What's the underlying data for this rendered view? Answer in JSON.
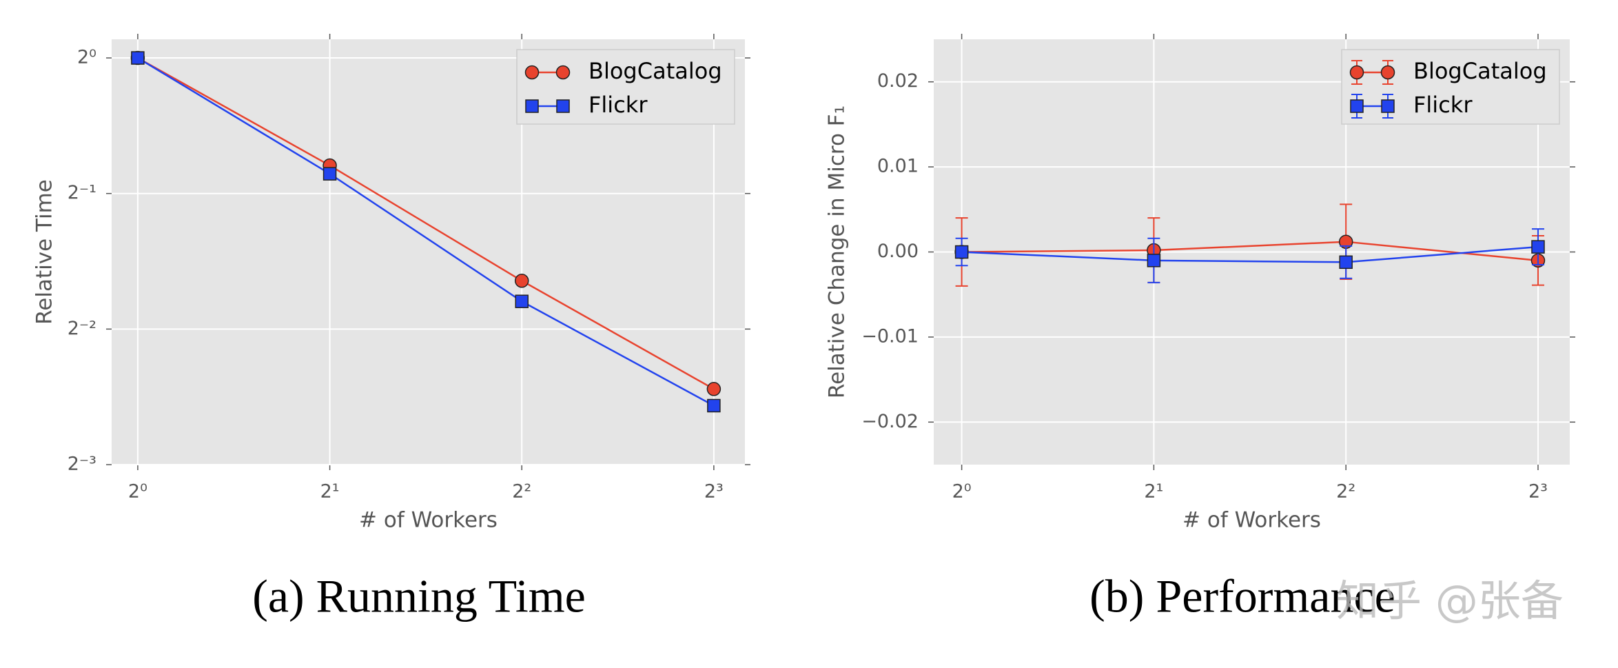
{
  "chart_data": [
    {
      "type": "line",
      "caption": "(a) Running Time",
      "xlabel": "# of Workers",
      "ylabel": "Relative Time",
      "xscale": "log",
      "yscale": "log",
      "x": [
        1,
        2,
        4,
        8
      ],
      "xlim": [
        0.91,
        8.95
      ],
      "xticks": [
        {
          "value": 1,
          "label": "2⁰"
        },
        {
          "value": 2,
          "label": "2¹"
        },
        {
          "value": 4,
          "label": "2²"
        },
        {
          "value": 8,
          "label": "2³"
        }
      ],
      "ylim": [
        0.125,
        1.1
      ],
      "yticks": [
        {
          "value": 1,
          "label": "2⁰"
        },
        {
          "value": 0.5,
          "label": "2⁻¹"
        },
        {
          "value": 0.25,
          "label": "2⁻²"
        },
        {
          "value": 0.125,
          "label": "2⁻³"
        }
      ],
      "grid": true,
      "legend": "upper right",
      "series": [
        {
          "name": "BlogCatalog",
          "color": "#e8432e",
          "marker": "o",
          "values": [
            1,
            0.577,
            0.32,
            0.184
          ]
        },
        {
          "name": "Flickr",
          "color": "#2243ee",
          "marker": "s",
          "values": [
            1,
            0.553,
            0.288,
            0.169
          ]
        }
      ]
    },
    {
      "type": "errorbar",
      "caption": "(b) Performance",
      "xlabel": "# of Workers",
      "ylabel": "Relative Change in Micro F₁",
      "xscale": "log",
      "x": [
        1,
        2,
        4,
        8
      ],
      "xlim": [
        0.904,
        8.97
      ],
      "xticks": [
        {
          "value": 1,
          "label": "2⁰"
        },
        {
          "value": 2,
          "label": "2¹"
        },
        {
          "value": 4,
          "label": "2²"
        },
        {
          "value": 8,
          "label": "2³"
        }
      ],
      "ylim": [
        -0.025,
        0.025
      ],
      "yticks": [
        {
          "value": 0.02,
          "label": "0.02"
        },
        {
          "value": 0.01,
          "label": "0.01"
        },
        {
          "value": 0,
          "label": "0.00"
        },
        {
          "value": -0.01,
          "label": "−0.01"
        },
        {
          "value": -0.02,
          "label": "−0.02"
        }
      ],
      "grid": true,
      "legend": "upper right",
      "series": [
        {
          "name": "BlogCatalog",
          "color": "#e8432e",
          "marker": "o",
          "values": [
            0,
            0.0002,
            0.0012,
            -0.001
          ],
          "errors": [
            0.004,
            0.0038,
            0.0044,
            0.0029
          ]
        },
        {
          "name": "Flickr",
          "color": "#2243ee",
          "marker": "s",
          "values": [
            0,
            -0.001,
            -0.0012,
            0.0006
          ],
          "errors": [
            0.0016,
            0.0026,
            0.0019,
            0.0021
          ]
        }
      ]
    }
  ],
  "watermark": "知乎 @张备"
}
